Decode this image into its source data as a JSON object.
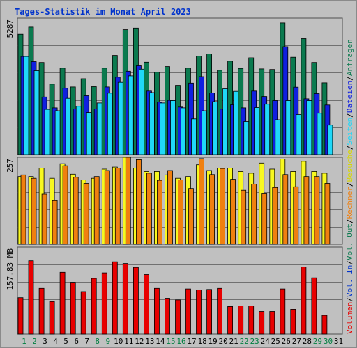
{
  "chart_data": {
    "type": "bar",
    "title": "Tages-Statistik im Monat April 2023",
    "x": [
      "1",
      "2",
      "3",
      "4",
      "5",
      "6",
      "7",
      "8",
      "9",
      "10",
      "11",
      "12",
      "13",
      "14",
      "15",
      "16",
      "17",
      "18",
      "19",
      "20",
      "21",
      "22",
      "23",
      "24",
      "25",
      "26",
      "27",
      "28",
      "29",
      "30",
      "31"
    ],
    "weekend_days": [
      "1",
      "2",
      "8",
      "9",
      "15",
      "16",
      "22",
      "23",
      "29",
      "30"
    ],
    "colors": {
      "title": "#0033cc",
      "grid": "#707070",
      "weekday_label": "#000000",
      "weekend_label": "#007f3f",
      "frame_bg": "#c0c0c0"
    },
    "panels": [
      {
        "id": "top",
        "ymax": 5287,
        "ylabel_text": "5287",
        "series": [
          {
            "name": "Anfragen",
            "color": "#0b7a4f",
            "values": [
              4660,
              4940,
              3570,
              2730,
              3350,
              2620,
              2940,
              2630,
              3350,
              3840,
              4840,
              4900,
              3580,
              3190,
              3410,
              2680,
              3350,
              3820,
              3900,
              3270,
              3620,
              3340,
              3750,
              3320,
              3300,
              5100,
              3770,
              4490,
              3570,
              2780,
              null
            ]
          },
          {
            "name": "Dateien",
            "color": "#1020e0",
            "values": [
              3800,
              3600,
              2230,
              1810,
              2570,
              1770,
              2280,
              1770,
              2620,
              3000,
              3230,
              3440,
              2460,
              2030,
              2100,
              1840,
              2770,
              3020,
              2390,
              1760,
              1930,
              1810,
              2460,
              2250,
              2090,
              4180,
              2610,
              2160,
              2360,
              1920,
              null
            ]
          },
          {
            "name": "Seiten",
            "color": "#20d8f8",
            "values": [
              3800,
              3250,
              1750,
              1700,
              2180,
              1870,
              1630,
              2000,
              2380,
              2800,
              3050,
              3310,
              2400,
              2000,
              2090,
              1810,
              1380,
              1700,
              2050,
              2550,
              2450,
              1280,
              1820,
              1950,
              1350,
              2090,
              1550,
              2090,
              1600,
              1140,
              null
            ]
          }
        ]
      },
      {
        "id": "middle",
        "ymax": 257,
        "ylabel_text": "257",
        "series": [
          {
            "name": "Besuche",
            "color": "#f8f820",
            "values": [
              200,
              200,
              225,
              195,
              238,
              207,
              190,
              195,
              222,
              228,
              260,
              225,
              215,
              215,
              205,
              195,
              200,
              235,
              218,
              225,
              225,
              215,
              210,
              240,
              222,
              252,
              215,
              245,
              215,
              210,
              null
            ]
          },
          {
            "name": "Rechner",
            "color": "#f08010",
            "values": [
              205,
              195,
              148,
              129,
              232,
              198,
              180,
              200,
              218,
              225,
              278,
              250,
              210,
              189,
              218,
              190,
              165,
              253,
              206,
              224,
              192,
              160,
              178,
              149,
              168,
              206,
              170,
              200,
              200,
              180,
              null
            ]
          }
        ]
      },
      {
        "id": "bottom",
        "ymax": 157.83,
        "ylabel_text": "157.83 MB",
        "series": [
          {
            "name": "Volumen",
            "color": "#e80000",
            "values": [
              66,
              133,
              83,
              59,
              112,
              94,
              77,
              101,
              111,
              131,
              128,
              121,
              108,
              83,
              65,
              62,
              82,
              80,
              81,
              83,
              50,
              51,
              51,
              41,
              41,
              82,
              45,
              122,
              102,
              34,
              null
            ]
          }
        ]
      }
    ],
    "legend": [
      {
        "text": "Volumen",
        "color": "#e80000"
      },
      {
        "text": "/",
        "color": "#000000"
      },
      {
        "text": "Vol. In",
        "color": "#0033cc"
      },
      {
        "text": "/",
        "color": "#000000"
      },
      {
        "text": "Vol. Out",
        "color": "#0b7a4f"
      },
      {
        "text": "/",
        "color": "#000000"
      },
      {
        "text": "Rechner",
        "color": "#f08010"
      },
      {
        "text": "/",
        "color": "#000000"
      },
      {
        "text": "Besuche",
        "color": "#d8d800"
      },
      {
        "text": "/",
        "color": "#000000"
      },
      {
        "text": "Seiten",
        "color": "#20d8f8"
      },
      {
        "text": "/",
        "color": "#000000"
      },
      {
        "text": "Dateien",
        "color": "#1020e0"
      },
      {
        "text": "/",
        "color": "#000000"
      },
      {
        "text": "Anfragen",
        "color": "#0b7a4f"
      }
    ]
  }
}
